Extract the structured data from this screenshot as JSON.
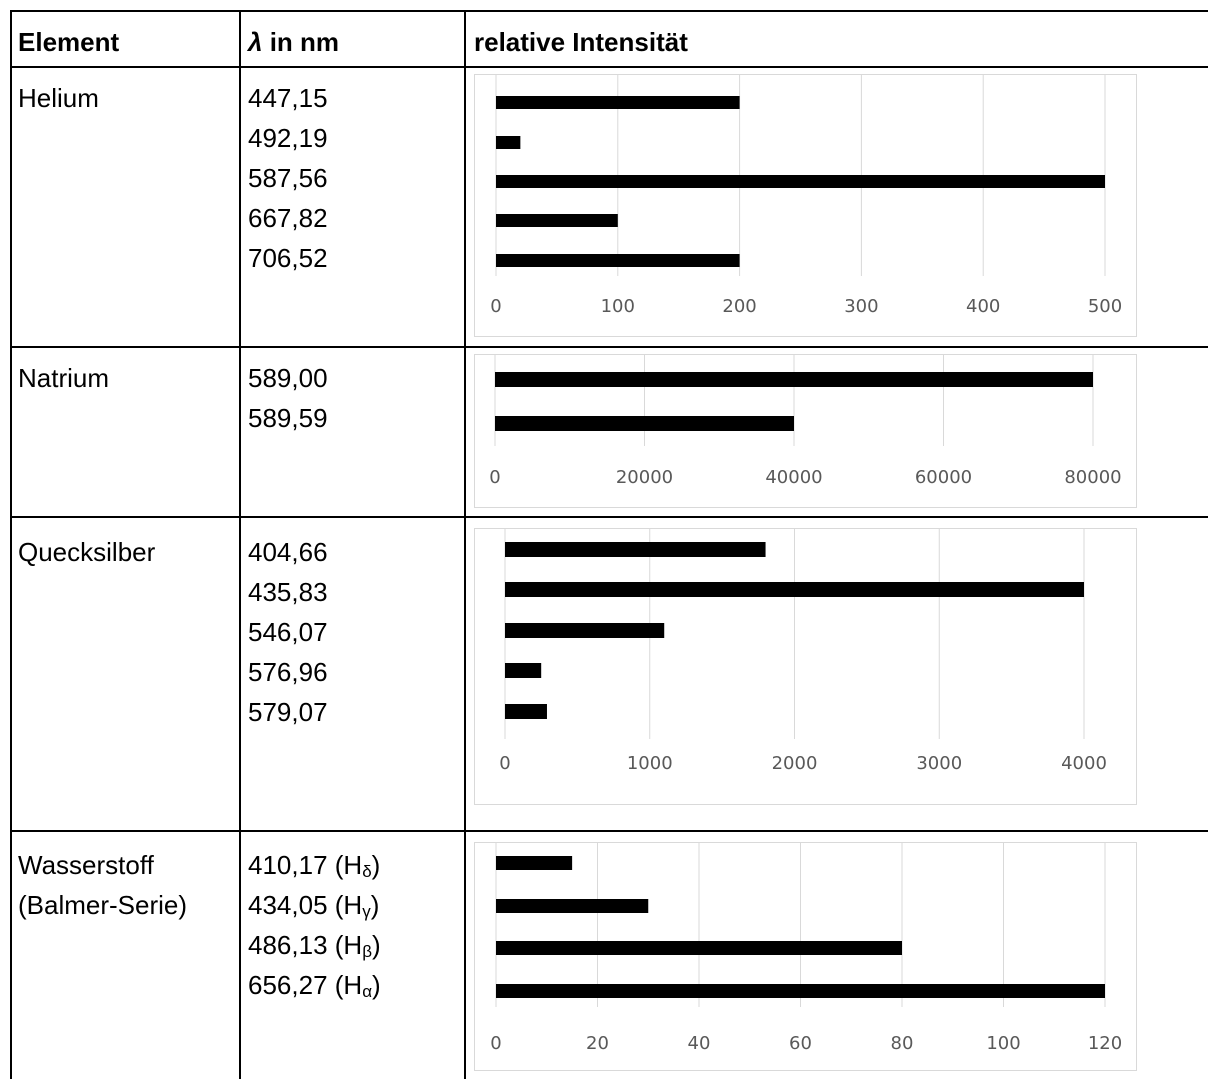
{
  "header": {
    "element": "Element",
    "lambda_symbol": "λ",
    "lambda_rest": " in nm",
    "intensity": "relative Intensität"
  },
  "rows": [
    {
      "element": [
        "Helium"
      ],
      "wavelengths": [
        {
          "value": "447,15"
        },
        {
          "value": "492,19"
        },
        {
          "value": "587,56"
        },
        {
          "value": "667,82"
        },
        {
          "value": "706,52"
        }
      ]
    },
    {
      "element": [
        "Natrium"
      ],
      "wavelengths": [
        {
          "value": "589,00"
        },
        {
          "value": "589,59"
        }
      ]
    },
    {
      "element": [
        "Quecksilber"
      ],
      "wavelengths": [
        {
          "value": "404,66"
        },
        {
          "value": "435,83"
        },
        {
          "value": "546,07"
        },
        {
          "value": "576,96"
        },
        {
          "value": "579,07"
        }
      ]
    },
    {
      "element": [
        "Wasserstoff",
        "(Balmer-Serie)"
      ],
      "wavelengths": [
        {
          "value": "410,17 (H",
          "sub": "δ",
          "close": ")"
        },
        {
          "value": "434,05 (H",
          "sub": "γ",
          "close": ")"
        },
        {
          "value": "486,13 (H",
          "sub": "β",
          "close": ")"
        },
        {
          "value": "656,27 (H",
          "sub": "α",
          "close": ")"
        }
      ]
    }
  ],
  "chart_data": [
    {
      "type": "bar",
      "orientation": "horizontal",
      "element": "Helium",
      "categories": [
        "447,15",
        "492,19",
        "587,56",
        "667,82",
        "706,52"
      ],
      "values": [
        200,
        20,
        500,
        100,
        200
      ],
      "xlim": [
        0,
        500
      ],
      "ticks": [
        0,
        100,
        200,
        300,
        400,
        500
      ],
      "grid": true
    },
    {
      "type": "bar",
      "orientation": "horizontal",
      "element": "Natrium",
      "categories": [
        "589,00",
        "589,59"
      ],
      "values": [
        80000,
        40000
      ],
      "xlim": [
        0,
        80000
      ],
      "ticks": [
        0,
        20000,
        40000,
        60000,
        80000
      ],
      "grid": true
    },
    {
      "type": "bar",
      "orientation": "horizontal",
      "element": "Quecksilber",
      "categories": [
        "404,66",
        "435,83",
        "546,07",
        "576,96",
        "579,07"
      ],
      "values": [
        1800,
        4000,
        1100,
        250,
        290
      ],
      "xlim": [
        0,
        4000
      ],
      "ticks": [
        0,
        1000,
        2000,
        3000,
        4000
      ],
      "grid": true
    },
    {
      "type": "bar",
      "orientation": "horizontal",
      "element": "Wasserstoff",
      "categories": [
        "410,17 (Hδ)",
        "434,05 (Hγ)",
        "486,13 (Hβ)",
        "656,27 (Hα)"
      ],
      "values": [
        15,
        30,
        80,
        120
      ],
      "xlim": [
        0,
        120
      ],
      "ticks": [
        0,
        20,
        40,
        60,
        80,
        100,
        120
      ],
      "grid": true
    }
  ],
  "colors": {
    "bar": "#000000",
    "grid": "#d9d9d9",
    "tick_text": "#595959",
    "border": "#000000"
  }
}
